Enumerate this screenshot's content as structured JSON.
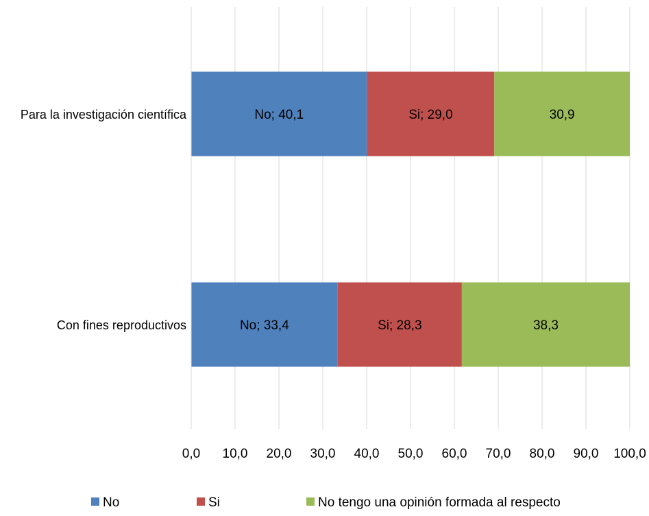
{
  "chart_data": {
    "type": "bar",
    "orientation": "horizontal",
    "stacked": true,
    "categories": [
      "Para la investigación científica",
      "Con fines reproductivos"
    ],
    "series": [
      {
        "name": "No",
        "values": [
          40.1,
          33.4
        ],
        "data_labels": [
          "No; 40,1",
          "No; 33,4"
        ],
        "color": "#4f81bd"
      },
      {
        "name": "Si",
        "values": [
          29.0,
          28.3
        ],
        "data_labels": [
          "Si; 29,0",
          "Si; 28,3"
        ],
        "color": "#c0504d"
      },
      {
        "name": "No tengo una opinión formada al respecto",
        "values": [
          30.9,
          38.3
        ],
        "data_labels": [
          "30,9",
          "38,3"
        ],
        "color": "#9bbb59"
      }
    ],
    "xlim": [
      0,
      100
    ],
    "x_ticks": [
      0,
      10,
      20,
      30,
      40,
      50,
      60,
      70,
      80,
      90,
      100
    ],
    "x_tick_labels": [
      "0,0",
      "10,0",
      "20,0",
      "30,0",
      "40,0",
      "50,0",
      "60,0",
      "70,0",
      "80,0",
      "90,0",
      "100,0"
    ],
    "title": "",
    "xlabel": "",
    "ylabel": "",
    "grid": "vertical",
    "legend_position": "bottom"
  }
}
